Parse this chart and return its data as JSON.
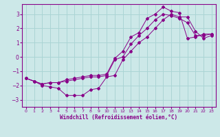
{
  "xlabel": "Windchill (Refroidissement éolien,°C)",
  "bg_color": "#cce8e8",
  "grid_color": "#aad4d4",
  "line_color": "#880088",
  "x_hours": [
    0,
    1,
    2,
    3,
    4,
    5,
    6,
    7,
    8,
    9,
    10,
    11,
    12,
    13,
    14,
    15,
    16,
    17,
    18,
    19,
    20,
    21,
    22,
    23
  ],
  "line_top": [
    -1.5,
    -1.7,
    -1.9,
    -1.8,
    -1.8,
    -1.6,
    -1.5,
    -1.4,
    -1.3,
    -1.3,
    -1.2,
    -0.1,
    0.4,
    1.4,
    1.7,
    2.7,
    3.0,
    3.5,
    3.2,
    3.1,
    1.3,
    1.4,
    1.6,
    1.6
  ],
  "line_mid": [
    -1.5,
    -1.7,
    -1.9,
    -1.8,
    -1.8,
    -1.7,
    -1.6,
    -1.5,
    -1.4,
    -1.4,
    -1.3,
    -0.2,
    0.0,
    0.9,
    1.5,
    2.0,
    2.6,
    3.0,
    2.9,
    2.7,
    2.4,
    1.5,
    1.5,
    1.6
  ],
  "line_bot": [
    -1.5,
    -1.7,
    -2.0,
    -2.1,
    -2.2,
    -2.7,
    -2.7,
    -2.7,
    -2.3,
    -2.2,
    -1.4,
    -1.3,
    -0.2,
    0.4,
    1.0,
    1.4,
    2.0,
    2.6,
    3.0,
    2.8,
    2.8,
    1.8,
    1.3,
    1.5
  ],
  "ylim": [
    -3.5,
    3.7
  ],
  "xlim": [
    -0.5,
    23.5
  ],
  "yticks": [
    -3,
    -2,
    -1,
    0,
    1,
    2,
    3
  ],
  "xticks": [
    0,
    1,
    2,
    3,
    4,
    5,
    6,
    7,
    8,
    9,
    10,
    11,
    12,
    13,
    14,
    15,
    16,
    17,
    18,
    19,
    20,
    21,
    22,
    23
  ]
}
